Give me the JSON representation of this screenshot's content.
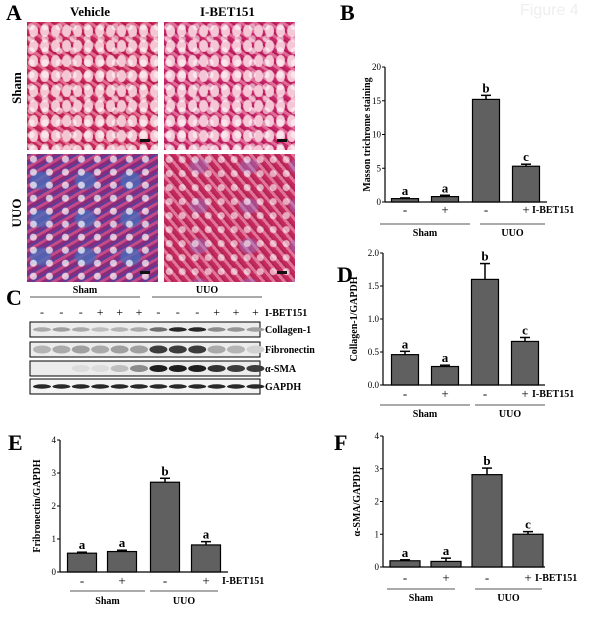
{
  "watermark": "Figure 4",
  "panel_labels": {
    "A": "A",
    "B": "B",
    "C": "C",
    "D": "D",
    "E": "E",
    "F": "F"
  },
  "panel_a": {
    "columns": [
      "Vehicle",
      "I-BET151"
    ],
    "rows": [
      "Sham",
      "UUO"
    ]
  },
  "panel_c": {
    "groups": [
      "Sham",
      "UUO"
    ],
    "treatment_label": "I-BET151",
    "lanes": [
      "-",
      "-",
      "-",
      "+",
      "+",
      "+",
      "-",
      "-",
      "-",
      "+",
      "+",
      "+"
    ],
    "blots": [
      "Collagen-1",
      "Fibronectin",
      "α-SMA",
      "GAPDH"
    ]
  },
  "chart_data": [
    {
      "panel": "B",
      "type": "bar",
      "ylabel": "Masson trichrome staining",
      "ylim": [
        0,
        20
      ],
      "yticks": [
        "0",
        "5",
        "10",
        "15",
        "20"
      ],
      "ytick_values": [
        0,
        5,
        10,
        15,
        20
      ],
      "treatment": [
        "-",
        "+",
        "-",
        "+"
      ],
      "treatment_label": "I-BET151",
      "groups": [
        "Sham",
        "UUO"
      ],
      "values": [
        0.5,
        0.8,
        15.2,
        5.3
      ],
      "errors": [
        0.1,
        0.2,
        0.6,
        0.3
      ],
      "letters": [
        "a",
        "a",
        "b",
        "c"
      ]
    },
    {
      "panel": "D",
      "type": "bar",
      "ylabel": "Collagen-1/GAPDH",
      "ylim": [
        0,
        2.0
      ],
      "yticks": [
        "0.0",
        "0.5",
        "1.0",
        "1.5",
        "2.0"
      ],
      "ytick_values": [
        0,
        0.5,
        1,
        1.5,
        2
      ],
      "treatment": [
        "-",
        "+",
        "-",
        "+"
      ],
      "treatment_label": "I-BET151",
      "groups": [
        "Sham",
        "UUO"
      ],
      "values": [
        0.46,
        0.28,
        1.6,
        0.66
      ],
      "errors": [
        0.05,
        0.02,
        0.24,
        0.06
      ],
      "letters": [
        "a",
        "a",
        "b",
        "c"
      ]
    },
    {
      "panel": "E",
      "type": "bar",
      "ylabel": "Fribronectin/GAPDH",
      "ylim": [
        0,
        4
      ],
      "yticks": [
        "0",
        "1",
        "2",
        "3",
        "4"
      ],
      "ytick_values": [
        0,
        1,
        2,
        3,
        4
      ],
      "treatment": [
        "-",
        "+",
        "-",
        "+"
      ],
      "treatment_label": "I-BET151",
      "groups": [
        "Sham",
        "UUO"
      ],
      "values": [
        0.57,
        0.62,
        2.72,
        0.82
      ],
      "errors": [
        0.03,
        0.04,
        0.12,
        0.1
      ],
      "letters": [
        "a",
        "a",
        "b",
        "a"
      ]
    },
    {
      "panel": "F",
      "type": "bar",
      "ylabel": "α-SMA/GAPDH",
      "ylim": [
        0,
        4
      ],
      "yticks": [
        "0",
        "1",
        "2",
        "3",
        "4"
      ],
      "ytick_values": [
        0,
        1,
        2,
        3,
        4
      ],
      "treatment": [
        "-",
        "+",
        "-",
        "+"
      ],
      "treatment_label": "I-BET151",
      "groups": [
        "Sham",
        "UUO"
      ],
      "values": [
        0.19,
        0.17,
        2.82,
        1.0
      ],
      "errors": [
        0.03,
        0.1,
        0.2,
        0.08
      ],
      "letters": [
        "a",
        "a",
        "b",
        "c"
      ]
    }
  ],
  "colors": {
    "bar": "#606060",
    "axis": "#000000"
  }
}
